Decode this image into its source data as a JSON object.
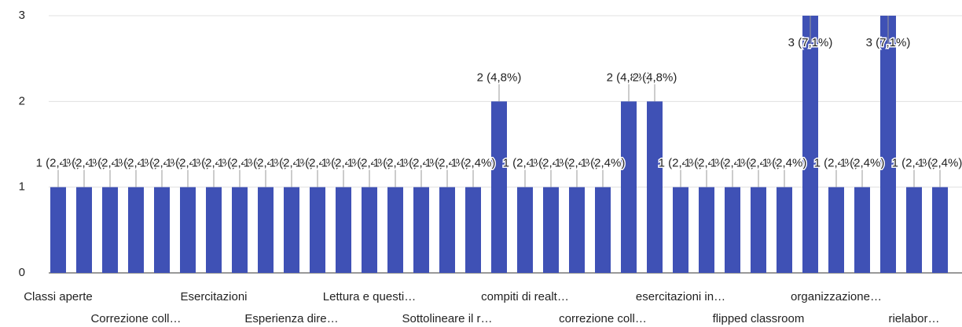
{
  "chart_data": {
    "type": "bar",
    "categories": [
      "Classi aperte",
      null,
      null,
      "Correzione coll…",
      null,
      null,
      "Esercitazioni",
      null,
      null,
      "Esperienza dire…",
      null,
      null,
      "Lettura e questi…",
      null,
      null,
      "Sottolineare il r…",
      null,
      null,
      "compiti di realt…",
      null,
      null,
      "correzione coll…",
      null,
      null,
      "esercitazioni in…",
      null,
      null,
      "flipped classroom",
      null,
      null,
      "organizzazione…",
      null,
      null,
      "rielabor…",
      null
    ],
    "values": [
      1,
      1,
      1,
      1,
      1,
      1,
      1,
      1,
      1,
      1,
      1,
      1,
      1,
      1,
      1,
      1,
      1,
      2,
      1,
      1,
      1,
      1,
      2,
      2,
      1,
      1,
      1,
      1,
      1,
      3,
      1,
      1,
      3,
      1,
      1
    ],
    "value_labels": [
      "1 (2,4%)",
      "1 (2,4%)",
      "1 (2,4%)",
      "1 (2,4%)",
      "1 (2,4%)",
      "1 (2,4%)",
      "1 (2,4%)",
      "1 (2,4%)",
      "1 (2,4%)",
      "1 (2,4%)",
      "1 (2,4%)",
      "1 (2,4%)",
      "1 (2,4%)",
      "1 (2,4%)",
      "1 (2,4%)",
      "1 (2,4%)",
      "1 (2,4%)",
      "2 (4,8%)",
      "1 (2,4%)",
      "1 (2,4%)",
      "1 (2,4%)",
      "1 (2,4%)",
      "2 (4,8%)",
      "2 (4,8%)",
      "1 (2,4%)",
      "1 (2,4%)",
      "1 (2,4%)",
      "1 (2,4%)",
      "1 (2,4%)",
      "3 (7,1%)",
      "1 (2,4%)",
      "1 (2,4%)",
      "3 (7,1%)",
      "1 (2,4%)",
      "1 (2,4%)"
    ],
    "color": "#3f51b5",
    "ylim": [
      0,
      3
    ],
    "yticks": [
      0,
      1,
      2,
      3
    ],
    "grid": true
  }
}
